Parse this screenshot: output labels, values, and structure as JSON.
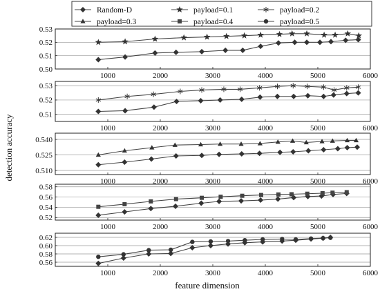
{
  "chart_data": {
    "type": "line",
    "xlabel": "feature dimension",
    "ylabel": "detection accuracy",
    "xlim": [
      0,
      6000
    ],
    "xticks": [
      1000,
      2000,
      3000,
      4000,
      5000,
      6000
    ],
    "grid": "horizontal",
    "legend_position": "top",
    "legend": [
      {
        "name": "Random-D",
        "marker": "diamond"
      },
      {
        "name": "payload=0.1",
        "marker": "star"
      },
      {
        "name": "payload=0.2",
        "marker": "asterisk"
      },
      {
        "name": "payload=0.3",
        "marker": "triangle"
      },
      {
        "name": "payload=0.4",
        "marker": "square"
      },
      {
        "name": "payload=0.5",
        "marker": "circle"
      }
    ],
    "panels": [
      {
        "ylim": [
          0.5,
          0.53
        ],
        "yticks": [
          0.5,
          0.51,
          0.52,
          0.53
        ],
        "ytick_labels": [
          "0.50",
          "0.51",
          "0.52",
          "0.53"
        ],
        "series": [
          {
            "name": "Random-D",
            "marker": "diamond",
            "x": [
              820,
              1330,
              1900,
              2300,
              2790,
              3240,
              3570,
              3910,
              4250,
              4560,
              4790,
              5040,
              5250,
              5530,
              5770
            ],
            "y": [
              0.507,
              0.509,
              0.512,
              0.5125,
              0.513,
              0.514,
              0.514,
              0.517,
              0.5195,
              0.52,
              0.52,
              0.52,
              0.5205,
              0.5215,
              0.522
            ]
          },
          {
            "name": "payload=0.1",
            "marker": "star",
            "x": [
              820,
              1330,
              1900,
              2450,
              2890,
              3260,
              3600,
              3910,
              4270,
              4510,
              4790,
              5120,
              5330,
              5570,
              5780
            ],
            "y": [
              0.52,
              0.5205,
              0.5225,
              0.5235,
              0.524,
              0.5245,
              0.525,
              0.5255,
              0.526,
              0.5265,
              0.5265,
              0.5255,
              0.5255,
              0.5265,
              0.525
            ]
          }
        ]
      },
      {
        "ylim": [
          0.505,
          0.533
        ],
        "yticks": [
          0.51,
          0.52,
          0.53
        ],
        "ytick_labels": [
          "0.51",
          "0.52",
          "0.53"
        ],
        "series": [
          {
            "name": "Random-D",
            "marker": "diamond",
            "x": [
              820,
              1330,
              1880,
              2310,
              2770,
              3140,
              3550,
              3900,
              4230,
              4540,
              4810,
              5110,
              5300,
              5550,
              5770
            ],
            "y": [
              0.512,
              0.5125,
              0.515,
              0.519,
              0.5195,
              0.52,
              0.5205,
              0.522,
              0.5225,
              0.5225,
              0.523,
              0.5225,
              0.5235,
              0.5245,
              0.525
            ]
          },
          {
            "name": "payload=0.2",
            "marker": "asterisk",
            "x": [
              820,
              1370,
              1870,
              2380,
              2790,
              3210,
              3520,
              3890,
              4230,
              4530,
              4800,
              5110,
              5310,
              5550,
              5770
            ],
            "y": [
              0.52,
              0.5225,
              0.524,
              0.526,
              0.527,
              0.5275,
              0.5275,
              0.5285,
              0.5295,
              0.53,
              0.5295,
              0.529,
              0.527,
              0.5285,
              0.529
            ]
          }
        ]
      },
      {
        "ylim": [
          0.506,
          0.546
        ],
        "yticks": [
          0.51,
          0.525,
          0.54
        ],
        "ytick_labels": [
          "0.510",
          "0.525",
          "0.540"
        ],
        "series": [
          {
            "name": "Random-D",
            "marker": "diamond",
            "x": [
              820,
              1320,
              1830,
              2300,
              2790,
              3120,
              3550,
              3890,
              4280,
              4530,
              4820,
              5110,
              5380,
              5560,
              5750
            ],
            "y": [
              0.5155,
              0.518,
              0.521,
              0.524,
              0.5245,
              0.5255,
              0.526,
              0.5265,
              0.5275,
              0.528,
              0.529,
              0.53,
              0.531,
              0.532,
              0.5325
            ]
          },
          {
            "name": "payload=0.3",
            "marker": "triangle",
            "x": [
              820,
              1320,
              1840,
              2280,
              2770,
              3140,
              3540,
              3900,
              4240,
              4520,
              4780,
              5080,
              5280,
              5560,
              5730
            ],
            "y": [
              0.525,
              0.529,
              0.532,
              0.5345,
              0.535,
              0.5355,
              0.5355,
              0.536,
              0.5375,
              0.5385,
              0.537,
              0.538,
              0.5385,
              0.539,
              0.539
            ]
          }
        ]
      },
      {
        "ylim": [
          0.515,
          0.585
        ],
        "yticks": [
          0.52,
          0.54,
          0.56,
          0.58
        ],
        "ytick_labels": [
          "0.52",
          "0.54",
          "0.56",
          "0.58"
        ],
        "series": [
          {
            "name": "Random-D",
            "marker": "diamond",
            "x": [
              820,
              1320,
              1820,
              2290,
              2780,
              3120,
              3540,
              3910,
              4240,
              4540,
              4810,
              5070,
              5290,
              5550
            ],
            "y": [
              0.5245,
              0.531,
              0.5375,
              0.542,
              0.548,
              0.5515,
              0.5525,
              0.554,
              0.556,
              0.559,
              0.561,
              0.562,
              0.565,
              0.567
            ]
          },
          {
            "name": "payload=0.4",
            "marker": "square",
            "x": [
              820,
              1320,
              1820,
              2300,
              2790,
              3150,
              3560,
              3920,
              4250,
              4500,
              4800,
              5090,
              5280,
              5550
            ],
            "y": [
              0.541,
              0.546,
              0.5515,
              0.556,
              0.5585,
              0.5605,
              0.5625,
              0.564,
              0.565,
              0.5655,
              0.5665,
              0.5675,
              0.5685,
              0.5695
            ]
          }
        ]
      },
      {
        "ylim": [
          0.55,
          0.63
        ],
        "yticks": [
          0.56,
          0.58,
          0.6,
          0.62
        ],
        "ytick_labels": [
          "0.56",
          "0.58",
          "0.60",
          "0.62"
        ],
        "series": [
          {
            "name": "Random-D",
            "marker": "diamond",
            "x": [
              820,
              1300,
              1780,
              2200,
              2610,
              2960,
              3290,
              3610,
              3950,
              4320,
              4580,
              4870,
              5100,
              5240
            ],
            "y": [
              0.557,
              0.57,
              0.58,
              0.581,
              0.595,
              0.6,
              0.604,
              0.607,
              0.609,
              0.611,
              0.613,
              0.616,
              0.618,
              0.62
            ]
          },
          {
            "name": "payload=0.5",
            "marker": "circle",
            "x": [
              820,
              1300,
              1780,
              2200,
              2610,
              2960,
              3290,
              3610,
              3950,
              4320,
              4580,
              4870,
              5100,
              5240
            ],
            "y": [
              0.573,
              0.579,
              0.589,
              0.59,
              0.609,
              0.61,
              0.611,
              0.613,
              0.615,
              0.616,
              0.615,
              0.617,
              0.618,
              0.619
            ]
          }
        ]
      }
    ]
  }
}
